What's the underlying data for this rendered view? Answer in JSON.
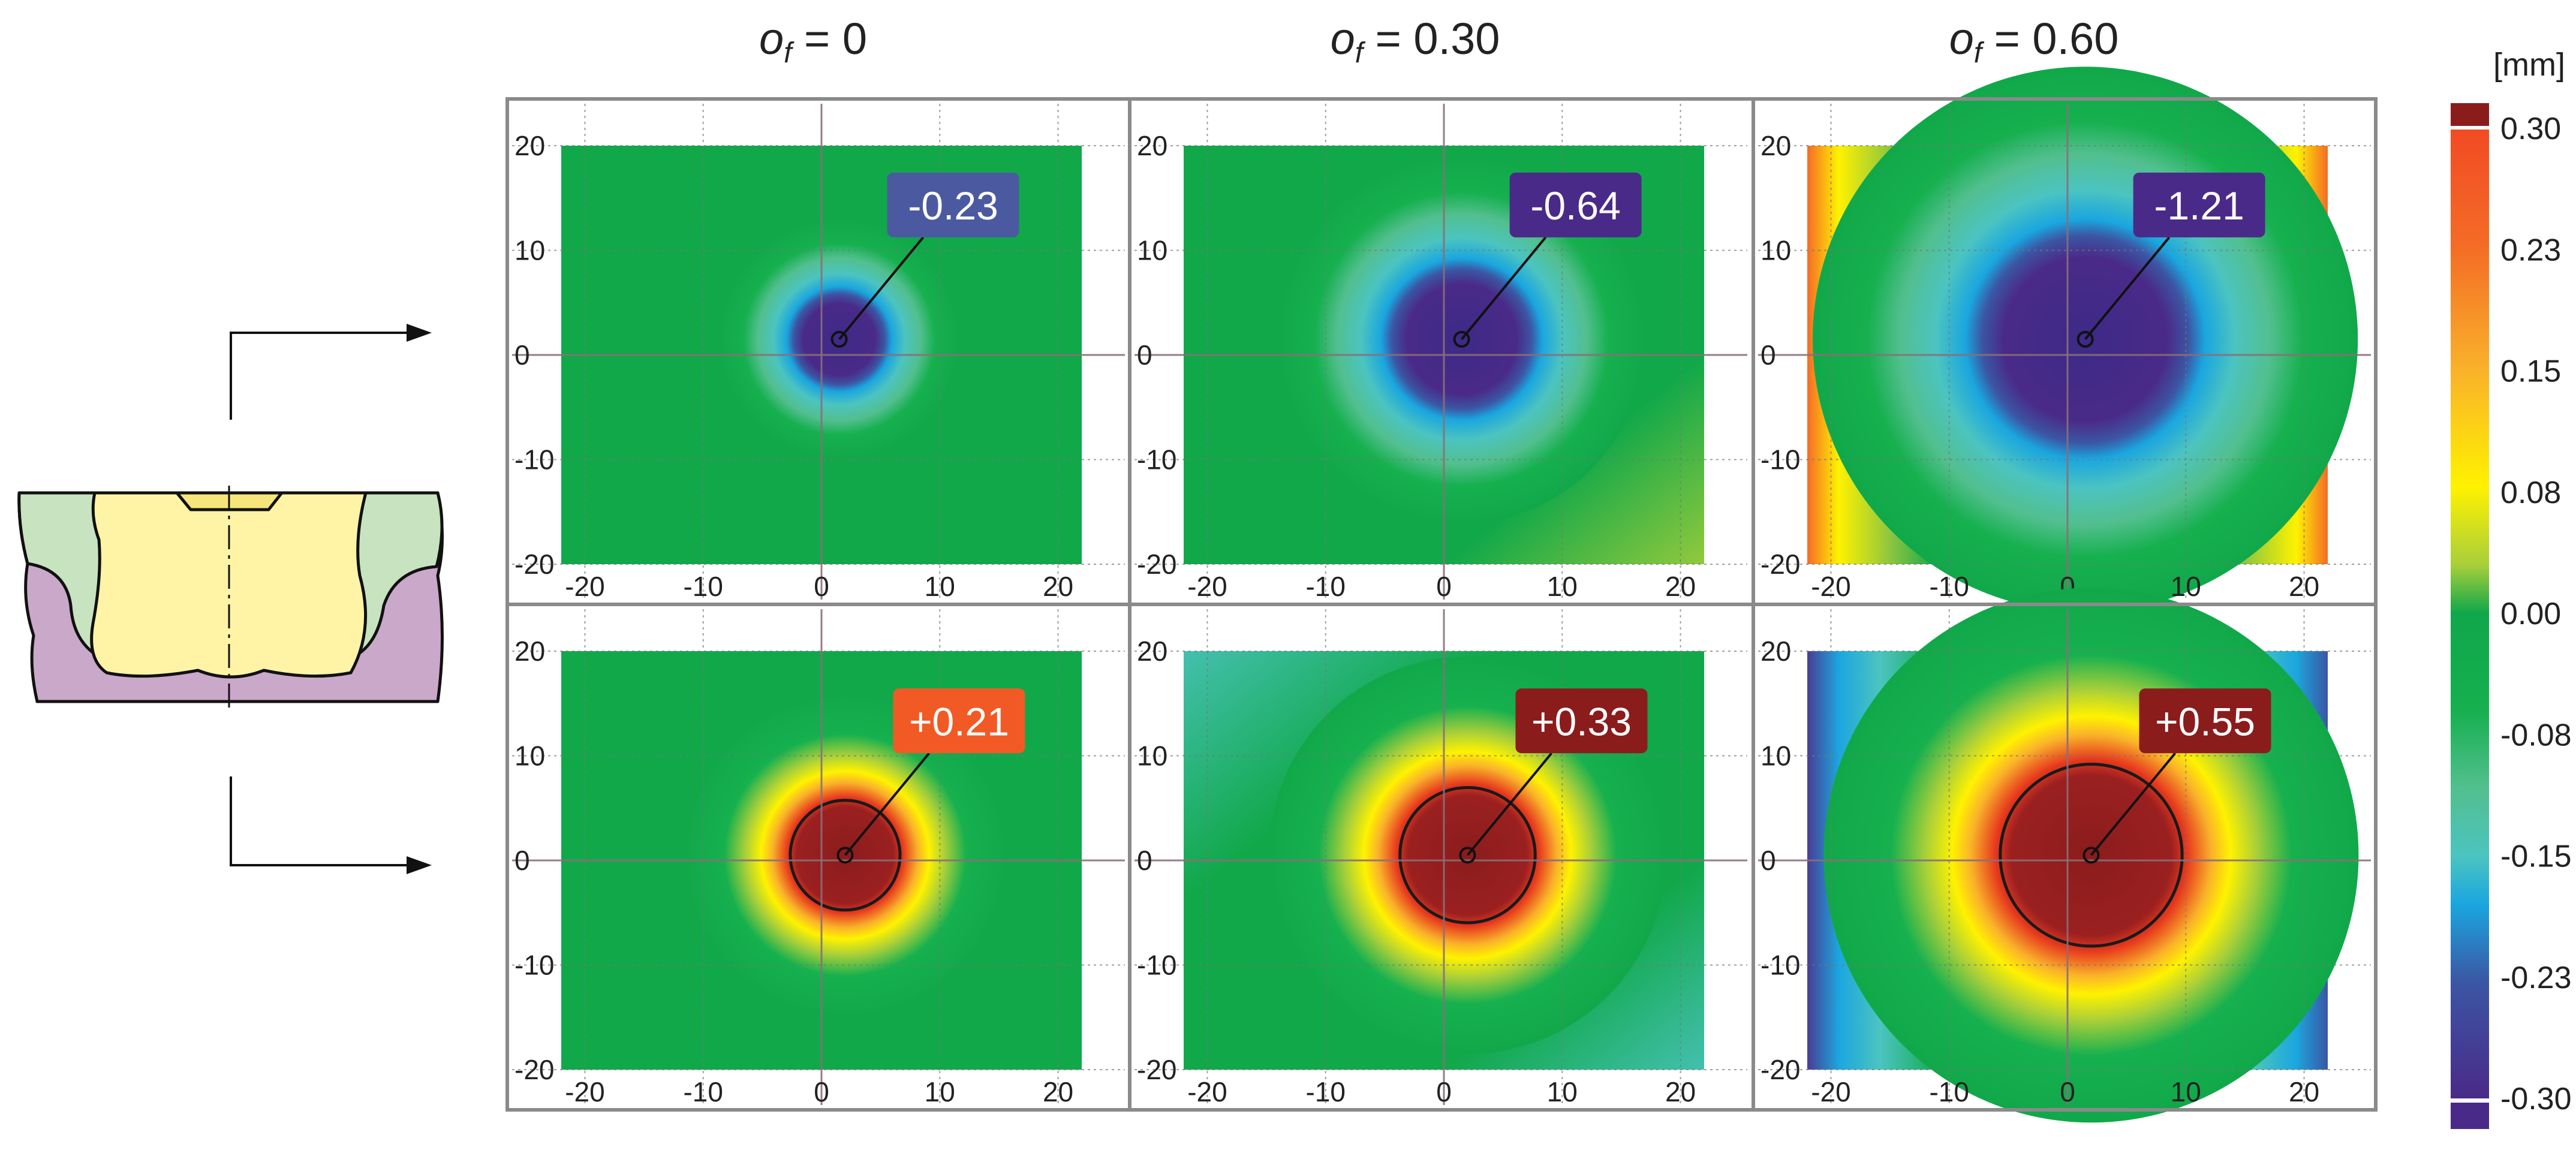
{
  "columns": [
    {
      "var": "o",
      "sub": "f",
      "rest": " = 0"
    },
    {
      "var": "o",
      "sub": "f",
      "rest": " = 0.30"
    },
    {
      "var": "o",
      "sub": "f",
      "rest": " = 0.60"
    }
  ],
  "chart_data": {
    "type": "heatmap",
    "x_ticks": [
      "-20",
      "-10",
      "0",
      "10",
      "20"
    ],
    "y_ticks": [
      "20",
      "10",
      "0",
      "-10",
      "-20"
    ],
    "xlim": [
      -22,
      22
    ],
    "ylim": [
      -20,
      20
    ],
    "grid": true,
    "panels": [
      {
        "row": 0,
        "col": 0,
        "label": "-0.23",
        "peak": -0.23,
        "center": [
          1.5,
          1.5
        ],
        "label_color": "#4b5aa0"
      },
      {
        "row": 0,
        "col": 1,
        "label": "-0.64",
        "peak": -0.64,
        "center": [
          1.5,
          1.5
        ],
        "label_color": "#4a2a88"
      },
      {
        "row": 0,
        "col": 2,
        "label": "-1.21",
        "peak": -1.21,
        "center": [
          1.5,
          1.5
        ],
        "label_color": "#4a2a88"
      },
      {
        "row": 1,
        "col": 0,
        "label": "+0.21",
        "peak": 0.21,
        "center": [
          2,
          0.5
        ],
        "label_color": "#f25a25"
      },
      {
        "row": 1,
        "col": 1,
        "label": "+0.33",
        "peak": 0.33,
        "center": [
          2,
          0.5
        ],
        "label_color": "#8b1c1c"
      },
      {
        "row": 1,
        "col": 2,
        "label": "+0.55",
        "peak": 0.55,
        "center": [
          2,
          0.5
        ],
        "label_color": "#8b1c1c"
      }
    ],
    "colorbar": {
      "unit": "[mm]",
      "ticks": [
        "0.30",
        "0.23",
        "0.15",
        "0.08",
        "0.00",
        "-0.08",
        "-0.15",
        "-0.23",
        "-0.30"
      ],
      "range": [
        -0.3,
        0.3
      ],
      "colors": [
        "#8b1c1c",
        "#f24a24",
        "#f79a2a",
        "#fff200",
        "#8cc63f",
        "#0fa74a",
        "#16b04f",
        "#66c28a",
        "#4cc4c0",
        "#1aa6df",
        "#3b56a4",
        "#5b2c8f",
        "#4a2a88"
      ]
    }
  }
}
